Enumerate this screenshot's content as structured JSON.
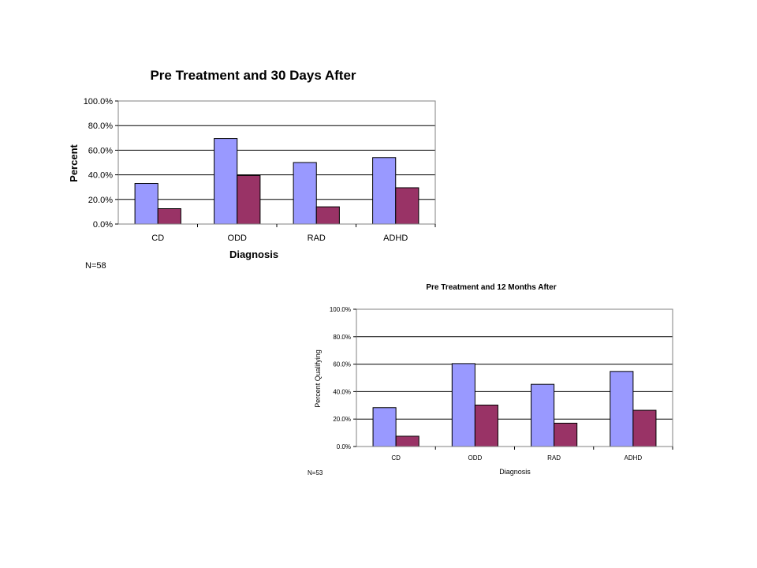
{
  "chart_data": [
    {
      "type": "bar",
      "title": "Pre Treatment and 30 Days After",
      "xlabel": "Diagnosis",
      "ylabel": "Percent",
      "categories": [
        "CD",
        "ODD",
        "RAD",
        "ADHD"
      ],
      "ylim": [
        0,
        100
      ],
      "yticks": [
        "0.0%",
        "20.0%",
        "40.0%",
        "60.0%",
        "80.0%",
        "100.0%"
      ],
      "grid": true,
      "series": [
        {
          "values": [
            33,
            69.5,
            50,
            54
          ],
          "color": "#9999ff"
        },
        {
          "values": [
            12.5,
            39.5,
            14,
            29.5
          ],
          "color": "#993366"
        }
      ],
      "note": "N=58"
    },
    {
      "type": "bar",
      "title": "Pre Treatment and 12 Months After",
      "xlabel": "Diagnosis",
      "ylabel": "Percent Qualifying",
      "categories": [
        "CD",
        "ODD",
        "RAD",
        "ADHD"
      ],
      "ylim": [
        0,
        100
      ],
      "yticks": [
        "0.0%",
        "20.0%",
        "40.0%",
        "60.0%",
        "80.0%",
        "100.0%"
      ],
      "grid": true,
      "series": [
        {
          "values": [
            28.3,
            60.4,
            45.3,
            54.7
          ],
          "color": "#9999ff"
        },
        {
          "values": [
            7.5,
            30.2,
            17,
            26.4
          ],
          "color": "#993366"
        }
      ],
      "note": "N=53"
    }
  ]
}
